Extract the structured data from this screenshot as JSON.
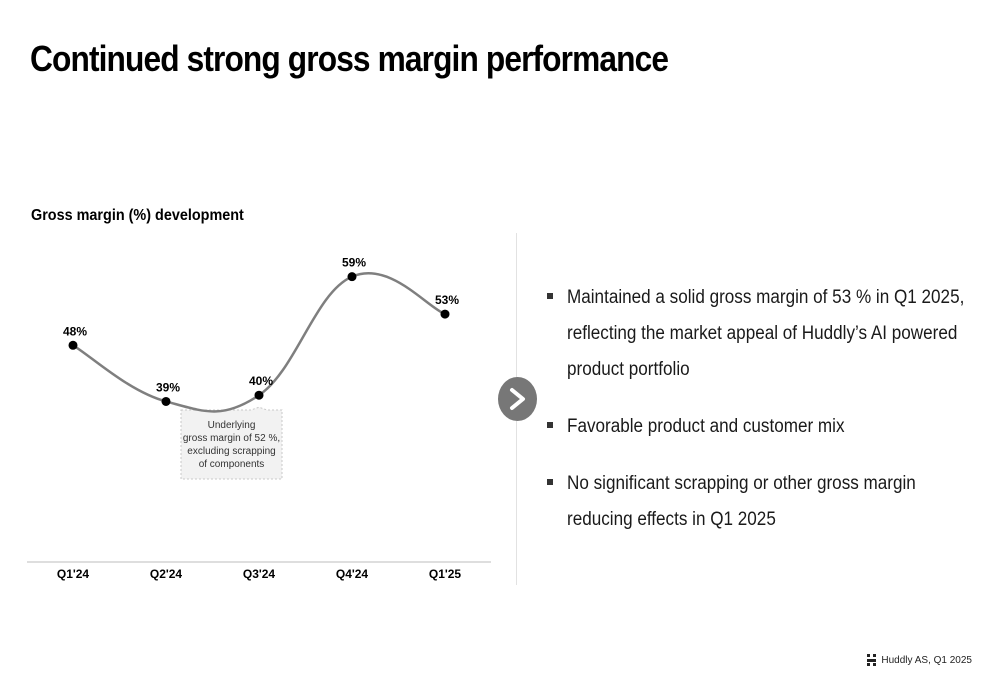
{
  "page": {
    "title": "Continued strong gross margin performance",
    "footer": "Huddly AS, Q1 2025"
  },
  "chart_data": {
    "type": "line",
    "title": "Gross margin (%) development",
    "categories": [
      "Q1'24",
      "Q2'24",
      "Q3'24",
      "Q4'24",
      "Q1'25"
    ],
    "values": [
      48,
      39,
      40,
      59,
      53
    ],
    "data_labels": [
      "48%",
      "39%",
      "40%",
      "59%",
      "53%"
    ],
    "ylim": [
      20,
      70
    ],
    "grid": false,
    "line_color": "#7f7f7f",
    "marker_color": "#000000",
    "annotation": {
      "category": "Q3'24",
      "lines": [
        "Underlying",
        "gross margin of 52 %,",
        "excluding scrapping",
        "of components"
      ]
    }
  },
  "commentary": {
    "arrow_icon": "chevron-right-icon",
    "bullets": [
      "Maintained a solid gross margin of 53 % in Q1 2025, reflecting the market appeal of Huddly’s AI powered product portfolio",
      "Favorable product and customer mix",
      "No significant scrapping or other gross margin reducing effects in Q1 2025"
    ]
  }
}
